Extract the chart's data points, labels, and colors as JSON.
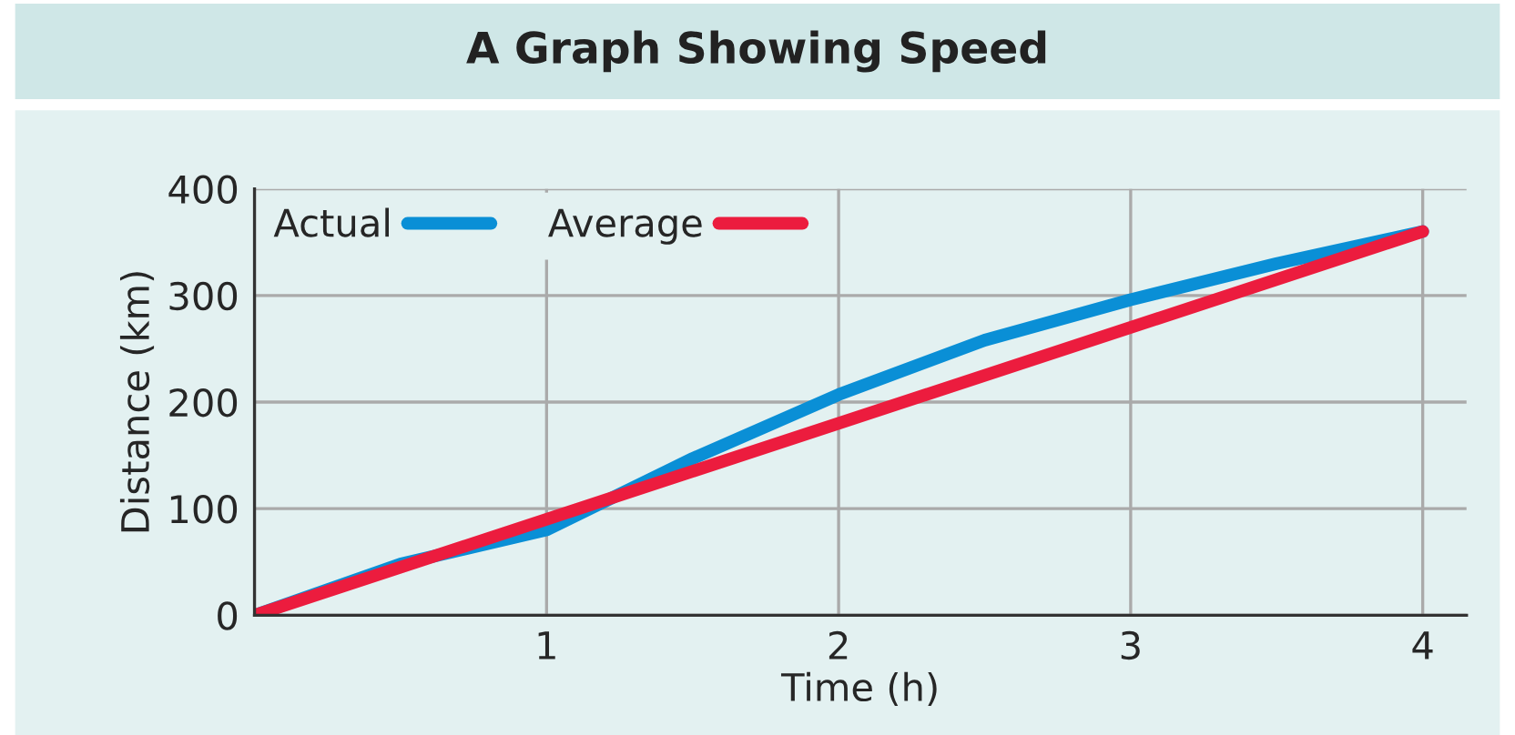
{
  "chart_data": {
    "type": "line",
    "title": "A Graph Showing Speed",
    "xlabel": "Time (h)",
    "ylabel": "Distance (km)",
    "series": [
      {
        "name": "Actual",
        "color": "#0a8fd6",
        "x": [
          0,
          0.5,
          1,
          1.5,
          2,
          2.5,
          3,
          3.5,
          4
        ],
        "values": [
          0,
          48,
          80,
          147,
          207,
          258,
          296,
          330,
          360
        ]
      },
      {
        "name": "Average",
        "color": "#ec1c3e",
        "x": [
          0,
          4
        ],
        "values": [
          0,
          360
        ]
      }
    ],
    "xlim": [
      0,
      4.15
    ],
    "xticks": [
      1,
      2,
      3,
      4
    ],
    "ylim": [
      0,
      400
    ],
    "yticks": [
      0,
      100,
      200,
      300,
      400
    ],
    "grid": true,
    "legend": "top left",
    "marker": "none",
    "line_style": "solid"
  }
}
